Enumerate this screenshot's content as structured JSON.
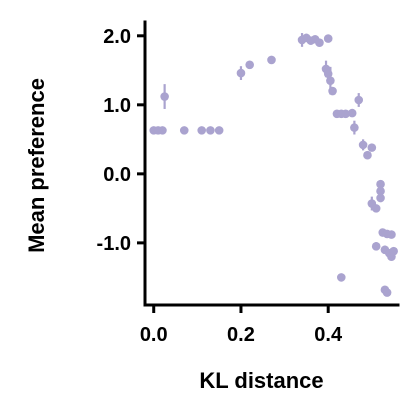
{
  "chart_data": {
    "type": "scatter",
    "xlabel": "KL distance",
    "ylabel": "Mean preference",
    "xlim": [
      -0.02,
      0.56
    ],
    "ylim": [
      -1.9,
      2.2
    ],
    "xticks": [
      {
        "value": 0.0,
        "label": "0.0"
      },
      {
        "value": 0.2,
        "label": "0.2"
      },
      {
        "value": 0.4,
        "label": "0.4"
      }
    ],
    "yticks": [
      {
        "value": 2.0,
        "label": "2.0"
      },
      {
        "value": 1.0,
        "label": "1.0"
      },
      {
        "value": 0.0,
        "label": "0.0"
      },
      {
        "value": -1.0,
        "label": "-1.0"
      }
    ],
    "color": "#aaa3cf",
    "grid": false,
    "points": [
      {
        "x": 0.0,
        "y": 0.63,
        "err": 0.04
      },
      {
        "x": 0.01,
        "y": 0.63,
        "err": 0.04
      },
      {
        "x": 0.02,
        "y": 0.63,
        "err": 0.04
      },
      {
        "x": 0.025,
        "y": 1.12,
        "err": 0.18
      },
      {
        "x": 0.07,
        "y": 0.63,
        "err": 0.04
      },
      {
        "x": 0.11,
        "y": 0.63,
        "err": 0.04
      },
      {
        "x": 0.13,
        "y": 0.63,
        "err": 0.04
      },
      {
        "x": 0.15,
        "y": 0.63,
        "err": 0.04
      },
      {
        "x": 0.2,
        "y": 1.46,
        "err": 0.1
      },
      {
        "x": 0.22,
        "y": 1.58,
        "err": 0.05
      },
      {
        "x": 0.27,
        "y": 1.65,
        "err": 0.04
      },
      {
        "x": 0.34,
        "y": 1.94,
        "err": 0.1
      },
      {
        "x": 0.35,
        "y": 1.97,
        "err": 0.06
      },
      {
        "x": 0.36,
        "y": 1.93,
        "err": 0.06
      },
      {
        "x": 0.37,
        "y": 1.95,
        "err": 0.05
      },
      {
        "x": 0.38,
        "y": 1.9,
        "err": 0.05
      },
      {
        "x": 0.4,
        "y": 1.96,
        "err": 0.04
      },
      {
        "x": 0.395,
        "y": 1.52,
        "err": 0.12
      },
      {
        "x": 0.4,
        "y": 1.45,
        "err": 0.1
      },
      {
        "x": 0.405,
        "y": 1.35,
        "err": 0.2
      },
      {
        "x": 0.41,
        "y": 1.2,
        "err": 0.04
      },
      {
        "x": 0.42,
        "y": 0.87,
        "err": 0.04
      },
      {
        "x": 0.43,
        "y": 0.87,
        "err": 0.04
      },
      {
        "x": 0.44,
        "y": 0.87,
        "err": 0.04
      },
      {
        "x": 0.455,
        "y": 0.88,
        "err": 0.04
      },
      {
        "x": 0.47,
        "y": 1.07,
        "err": 0.1
      },
      {
        "x": 0.46,
        "y": 0.67,
        "err": 0.1
      },
      {
        "x": 0.48,
        "y": 0.42,
        "err": 0.08
      },
      {
        "x": 0.49,
        "y": 0.27,
        "err": 0.05
      },
      {
        "x": 0.5,
        "y": 0.38,
        "err": 0.05
      },
      {
        "x": 0.5,
        "y": -0.43,
        "err": 0.1
      },
      {
        "x": 0.51,
        "y": -0.5,
        "err": 0.04
      },
      {
        "x": 0.52,
        "y": -0.15,
        "err": 0.06
      },
      {
        "x": 0.52,
        "y": -0.25,
        "err": 0.06
      },
      {
        "x": 0.52,
        "y": -0.35,
        "err": 0.06
      },
      {
        "x": 0.51,
        "y": -1.05,
        "err": 0.06
      },
      {
        "x": 0.525,
        "y": -0.85,
        "err": 0.04
      },
      {
        "x": 0.535,
        "y": -0.87,
        "err": 0.04
      },
      {
        "x": 0.545,
        "y": -0.88,
        "err": 0.04
      },
      {
        "x": 0.53,
        "y": -1.1,
        "err": 0.06
      },
      {
        "x": 0.54,
        "y": -1.15,
        "err": 0.04
      },
      {
        "x": 0.55,
        "y": -1.12,
        "err": 0.04
      },
      {
        "x": 0.545,
        "y": -1.2,
        "err": 0.04
      },
      {
        "x": 0.43,
        "y": -1.5,
        "err": 0.04
      },
      {
        "x": 0.53,
        "y": -1.68,
        "err": 0.05
      },
      {
        "x": 0.535,
        "y": -1.72,
        "err": 0.04
      }
    ]
  }
}
